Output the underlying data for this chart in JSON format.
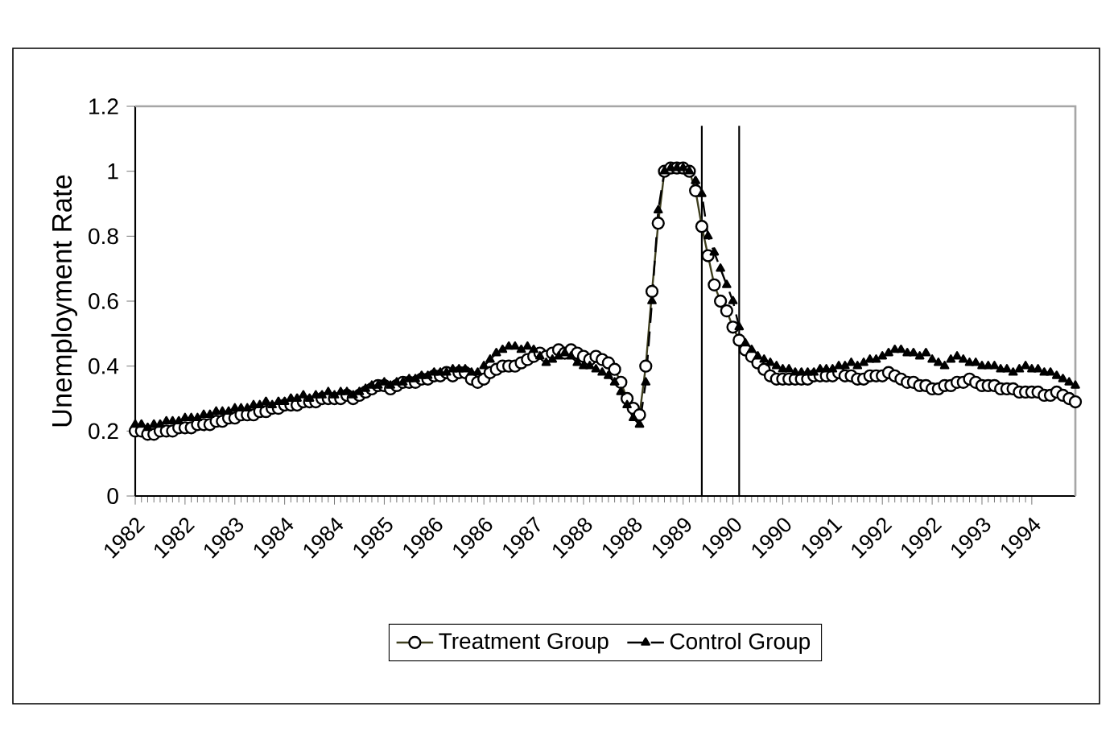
{
  "chart_data": {
    "type": "line",
    "ylabel": "Unemployment Rate",
    "x": [
      "1982-01",
      "1982-02",
      "1982-03",
      "1982-04",
      "1982-05",
      "1982-06",
      "1982-07",
      "1982-08",
      "1982-09",
      "1982-10",
      "1982-11",
      "1982-12",
      "1983-01",
      "1983-02",
      "1983-03",
      "1983-04",
      "1983-05",
      "1983-06",
      "1983-07",
      "1983-08",
      "1983-09",
      "1983-10",
      "1983-11",
      "1983-12",
      "1984-01",
      "1984-02",
      "1984-03",
      "1984-04",
      "1984-05",
      "1984-06",
      "1984-07",
      "1984-08",
      "1984-09",
      "1984-10",
      "1984-11",
      "1984-12",
      "1985-01",
      "1985-02",
      "1985-03",
      "1985-04",
      "1985-05",
      "1985-06",
      "1985-07",
      "1985-08",
      "1985-09",
      "1985-10",
      "1985-11",
      "1985-12",
      "1986-01",
      "1986-02",
      "1986-03",
      "1986-04",
      "1986-05",
      "1986-06",
      "1986-07",
      "1986-08",
      "1986-09",
      "1986-10",
      "1986-11",
      "1986-12",
      "1987-01",
      "1987-02",
      "1987-03",
      "1987-04",
      "1987-05",
      "1987-06",
      "1987-07",
      "1987-08",
      "1987-09",
      "1987-10",
      "1987-11",
      "1987-12",
      "1988-01",
      "1988-02",
      "1988-03",
      "1988-04",
      "1988-05",
      "1988-06",
      "1988-07",
      "1988-08",
      "1988-09",
      "1988-10",
      "1988-11",
      "1988-12",
      "1989-01",
      "1989-02",
      "1989-03",
      "1989-04",
      "1989-05",
      "1989-06",
      "1989-07",
      "1989-08",
      "1989-09",
      "1989-10",
      "1989-11",
      "1989-12",
      "1990-01",
      "1990-02",
      "1990-03",
      "1990-04",
      "1990-05",
      "1990-06",
      "1990-07",
      "1990-08",
      "1990-09",
      "1990-10",
      "1990-11",
      "1990-12",
      "1991-01",
      "1991-02",
      "1991-03",
      "1991-04",
      "1991-05",
      "1991-06",
      "1991-07",
      "1991-08",
      "1991-09",
      "1991-10",
      "1991-11",
      "1991-12",
      "1992-01",
      "1992-02",
      "1992-03",
      "1992-04",
      "1992-05",
      "1992-06",
      "1992-07",
      "1992-08",
      "1992-09",
      "1992-10",
      "1992-11",
      "1992-12",
      "1993-01",
      "1993-02",
      "1993-03",
      "1993-04",
      "1993-05",
      "1993-06",
      "1993-07",
      "1993-08",
      "1993-09",
      "1993-10",
      "1993-11",
      "1993-12",
      "1994-01",
      "1994-02",
      "1994-03",
      "1994-04",
      "1994-05",
      "1994-06",
      "1994-07",
      "1994-08"
    ],
    "series": [
      {
        "name": "Treatment Group",
        "color": "#3f3f1f",
        "marker": "circle",
        "line_style": "solid",
        "values": [
          0.2,
          0.2,
          0.19,
          0.19,
          0.2,
          0.2,
          0.2,
          0.21,
          0.21,
          0.21,
          0.22,
          0.22,
          0.22,
          0.23,
          0.23,
          0.24,
          0.24,
          0.25,
          0.25,
          0.25,
          0.26,
          0.26,
          0.27,
          0.27,
          0.28,
          0.28,
          0.28,
          0.29,
          0.29,
          0.29,
          0.3,
          0.3,
          0.3,
          0.3,
          0.31,
          0.3,
          0.31,
          0.32,
          0.33,
          0.34,
          0.34,
          0.33,
          0.34,
          0.35,
          0.35,
          0.35,
          0.36,
          0.36,
          0.37,
          0.37,
          0.38,
          0.37,
          0.38,
          0.38,
          0.36,
          0.35,
          0.36,
          0.38,
          0.39,
          0.4,
          0.4,
          0.4,
          0.41,
          0.42,
          0.43,
          0.44,
          0.43,
          0.44,
          0.45,
          0.44,
          0.45,
          0.44,
          0.43,
          0.42,
          0.43,
          0.42,
          0.41,
          0.39,
          0.35,
          0.3,
          0.27,
          0.25,
          0.4,
          0.63,
          0.84,
          1.0,
          1.01,
          1.01,
          1.01,
          1.0,
          0.94,
          0.83,
          0.74,
          0.65,
          0.6,
          0.57,
          0.52,
          0.48,
          0.45,
          0.43,
          0.41,
          0.39,
          0.37,
          0.36,
          0.36,
          0.36,
          0.36,
          0.36,
          0.36,
          0.37,
          0.37,
          0.37,
          0.37,
          0.38,
          0.37,
          0.37,
          0.36,
          0.36,
          0.37,
          0.37,
          0.37,
          0.38,
          0.37,
          0.36,
          0.35,
          0.35,
          0.34,
          0.34,
          0.33,
          0.33,
          0.34,
          0.34,
          0.35,
          0.35,
          0.36,
          0.35,
          0.34,
          0.34,
          0.34,
          0.33,
          0.33,
          0.33,
          0.32,
          0.32,
          0.32,
          0.32,
          0.31,
          0.31,
          0.32,
          0.31,
          0.3,
          0.29
        ]
      },
      {
        "name": "Control Group",
        "color": "#000000",
        "marker": "triangle",
        "line_style": "dashed",
        "values": [
          0.22,
          0.22,
          0.21,
          0.22,
          0.22,
          0.23,
          0.23,
          0.23,
          0.24,
          0.24,
          0.24,
          0.25,
          0.25,
          0.26,
          0.26,
          0.26,
          0.27,
          0.27,
          0.27,
          0.28,
          0.28,
          0.29,
          0.28,
          0.29,
          0.29,
          0.3,
          0.3,
          0.31,
          0.3,
          0.31,
          0.31,
          0.32,
          0.31,
          0.32,
          0.32,
          0.31,
          0.32,
          0.33,
          0.34,
          0.34,
          0.35,
          0.34,
          0.35,
          0.35,
          0.36,
          0.36,
          0.37,
          0.37,
          0.38,
          0.38,
          0.38,
          0.39,
          0.39,
          0.39,
          0.38,
          0.38,
          0.4,
          0.42,
          0.44,
          0.45,
          0.46,
          0.46,
          0.45,
          0.46,
          0.45,
          0.43,
          0.41,
          0.42,
          0.43,
          0.44,
          0.43,
          0.41,
          0.4,
          0.4,
          0.39,
          0.38,
          0.37,
          0.35,
          0.32,
          0.28,
          0.24,
          0.22,
          0.35,
          0.6,
          0.88,
          1.0,
          1.01,
          1.01,
          1.01,
          1.0,
          0.97,
          0.93,
          0.8,
          0.75,
          0.7,
          0.65,
          0.6,
          0.52,
          0.47,
          0.45,
          0.43,
          0.42,
          0.41,
          0.4,
          0.39,
          0.39,
          0.38,
          0.38,
          0.38,
          0.38,
          0.39,
          0.39,
          0.39,
          0.4,
          0.4,
          0.41,
          0.4,
          0.41,
          0.42,
          0.42,
          0.43,
          0.44,
          0.45,
          0.45,
          0.44,
          0.44,
          0.43,
          0.44,
          0.42,
          0.41,
          0.4,
          0.42,
          0.43,
          0.42,
          0.41,
          0.41,
          0.4,
          0.4,
          0.4,
          0.39,
          0.39,
          0.38,
          0.39,
          0.4,
          0.39,
          0.39,
          0.38,
          0.38,
          0.37,
          0.36,
          0.35,
          0.34
        ]
      }
    ],
    "xlim": [
      "1982-01",
      "1994-08"
    ],
    "xticks": [
      {
        "value": "1982-01",
        "label": "1982"
      },
      {
        "value": "1982-09",
        "label": "1982"
      },
      {
        "value": "1983-05",
        "label": "1983"
      },
      {
        "value": "1984-01",
        "label": "1984"
      },
      {
        "value": "1984-09",
        "label": "1984"
      },
      {
        "value": "1985-05",
        "label": "1985"
      },
      {
        "value": "1986-01",
        "label": "1986"
      },
      {
        "value": "1986-09",
        "label": "1986"
      },
      {
        "value": "1987-05",
        "label": "1987"
      },
      {
        "value": "1988-01",
        "label": "1988"
      },
      {
        "value": "1988-09",
        "label": "1988"
      },
      {
        "value": "1989-05",
        "label": "1989"
      },
      {
        "value": "1990-01",
        "label": "1990"
      },
      {
        "value": "1990-09",
        "label": "1990"
      },
      {
        "value": "1991-05",
        "label": "1991"
      },
      {
        "value": "1992-01",
        "label": "1992"
      },
      {
        "value": "1992-09",
        "label": "1992"
      },
      {
        "value": "1993-05",
        "label": "1993"
      },
      {
        "value": "1994-01",
        "label": "1994"
      }
    ],
    "ylim": [
      0,
      1.2
    ],
    "yticks": [
      0,
      0.2,
      0.4,
      0.6,
      0.8,
      1,
      1.2
    ],
    "ref_lines": [
      {
        "axis": "x",
        "value": "1989-08",
        "color": "#000000"
      },
      {
        "axis": "x",
        "value": "1990-02",
        "color": "#000000"
      }
    ],
    "legend": "bottom",
    "grid": false
  }
}
